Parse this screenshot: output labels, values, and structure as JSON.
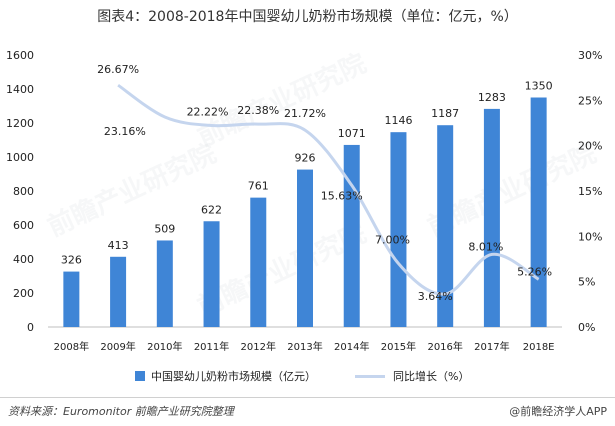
{
  "title": "图表4：2008-2018年中国婴幼儿奶粉市场规模（单位：亿元，%）",
  "chart_data": {
    "type": "bar",
    "categories": [
      "2008年",
      "2009年",
      "2010年",
      "2011年",
      "2012年",
      "2013年",
      "2014年",
      "2015年",
      "2016年",
      "2017年",
      "2018E"
    ],
    "series": [
      {
        "name": "中国婴幼儿奶粉市场规模（亿元）",
        "kind": "bar",
        "axis": "left",
        "color": "#3f85d6",
        "values": [
          326,
          413,
          509,
          622,
          761,
          926,
          1071,
          1146,
          1187,
          1283,
          1350
        ],
        "labels": [
          "326",
          "413",
          "509",
          "622",
          "761",
          "926",
          "1071",
          "1146",
          "1187",
          "1283",
          "1350"
        ]
      },
      {
        "name": "同比增长（%）",
        "kind": "line",
        "axis": "right",
        "color": "#c5d5ee",
        "values": [
          null,
          26.67,
          23.16,
          22.22,
          22.38,
          21.72,
          15.63,
          7.0,
          3.64,
          8.01,
          5.26
        ],
        "labels": [
          "",
          "26.67%",
          "23.16%",
          "22.22%",
          "22.38%",
          "21.72%",
          "15.63%",
          "7.00%",
          "3.64%",
          "8.01%",
          "5.26%"
        ]
      }
    ],
    "y_left": {
      "min": 0,
      "max": 1600,
      "ticks": [
        0,
        200,
        400,
        600,
        800,
        1000,
        1200,
        1400,
        1600
      ]
    },
    "y_right": {
      "min": 0,
      "max": 30,
      "ticks": [
        "0%",
        "5%",
        "10%",
        "15%",
        "20%",
        "25%",
        "30%"
      ]
    },
    "legend_position": "bottom"
  },
  "source": "资料来源：Euromonitor 前瞻产业研究院整理",
  "brand": "@前瞻经济学人APP"
}
